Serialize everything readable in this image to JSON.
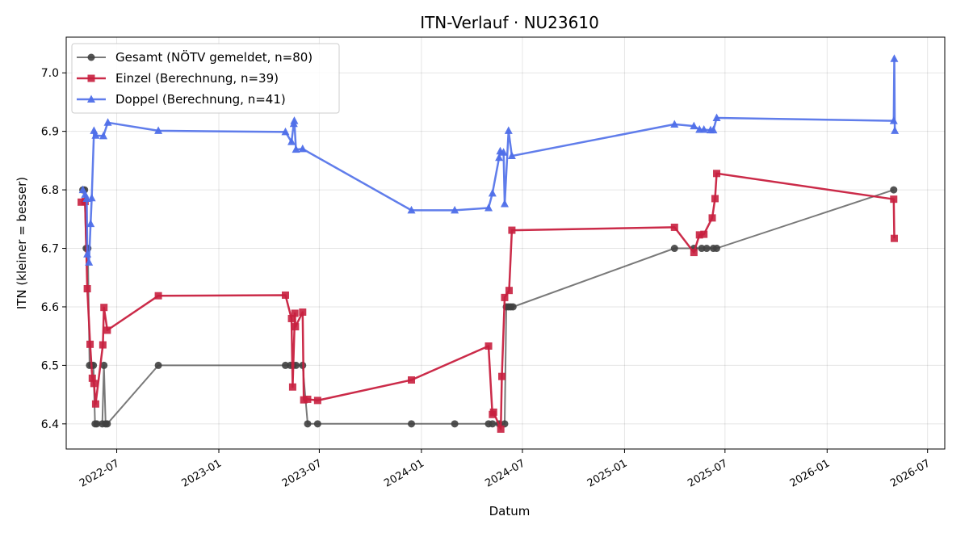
{
  "chart_data": {
    "type": "line",
    "title": "ITN-Verlauf · NU23610",
    "xlabel": "Datum",
    "ylabel": "ITN  (kleiner = besser)",
    "xlim": [
      "2022-04-01",
      "2026-08-01"
    ],
    "ylim": [
      6.357,
      7.061
    ],
    "x_ticks": [
      "2022-07-01",
      "2023-01-01",
      "2023-07-01",
      "2024-01-01",
      "2024-07-01",
      "2025-01-01",
      "2025-07-01",
      "2026-01-01",
      "2026-07-01"
    ],
    "x_tick_labels": [
      "2022-07",
      "2023-01",
      "2023-07",
      "2024-01",
      "2024-07",
      "2025-01",
      "2025-07",
      "2026-01",
      "2026-07"
    ],
    "y_ticks": [
      6.4,
      6.5,
      6.6,
      6.7,
      6.8,
      6.9,
      7.0
    ],
    "y_tick_labels": [
      "6.4",
      "6.5",
      "6.6",
      "6.7",
      "6.8",
      "6.9",
      "7.0"
    ],
    "grid": true,
    "legend_position": "top-left",
    "series": [
      {
        "name": "Gesamt (NÖTV gemeldet, n=80)",
        "color": "#404040",
        "marker": "circle",
        "points": [
          {
            "x": "2022-05-01",
            "y": 6.8
          },
          {
            "x": "2022-05-04",
            "y": 6.8
          },
          {
            "x": "2022-05-07",
            "y": 6.7
          },
          {
            "x": "2022-05-10",
            "y": 6.7
          },
          {
            "x": "2022-05-13",
            "y": 6.5
          },
          {
            "x": "2022-05-17",
            "y": 6.5
          },
          {
            "x": "2022-05-20",
            "y": 6.5
          },
          {
            "x": "2022-05-23",
            "y": 6.4
          },
          {
            "x": "2022-05-26",
            "y": 6.4
          },
          {
            "x": "2022-06-05",
            "y": 6.4
          },
          {
            "x": "2022-06-08",
            "y": 6.5
          },
          {
            "x": "2022-06-11",
            "y": 6.4
          },
          {
            "x": "2022-06-14",
            "y": 6.4
          },
          {
            "x": "2022-09-14",
            "y": 6.5
          },
          {
            "x": "2023-05-01",
            "y": 6.5
          },
          {
            "x": "2023-05-10",
            "y": 6.5
          },
          {
            "x": "2023-05-15",
            "y": 6.5
          },
          {
            "x": "2023-05-20",
            "y": 6.5
          },
          {
            "x": "2023-06-01",
            "y": 6.5
          },
          {
            "x": "2023-06-10",
            "y": 6.4
          },
          {
            "x": "2023-06-28",
            "y": 6.4
          },
          {
            "x": "2023-12-14",
            "y": 6.4
          },
          {
            "x": "2024-03-01",
            "y": 6.4
          },
          {
            "x": "2024-05-01",
            "y": 6.4
          },
          {
            "x": "2024-05-08",
            "y": 6.4
          },
          {
            "x": "2024-05-20",
            "y": 6.4
          },
          {
            "x": "2024-05-30",
            "y": 6.4
          },
          {
            "x": "2024-06-02",
            "y": 6.6
          },
          {
            "x": "2024-06-06",
            "y": 6.6
          },
          {
            "x": "2024-06-10",
            "y": 6.6
          },
          {
            "x": "2024-06-14",
            "y": 6.6
          },
          {
            "x": "2025-04-01",
            "y": 6.7
          },
          {
            "x": "2025-05-06",
            "y": 6.7
          },
          {
            "x": "2025-05-20",
            "y": 6.7
          },
          {
            "x": "2025-05-29",
            "y": 6.7
          },
          {
            "x": "2025-06-10",
            "y": 6.7
          },
          {
            "x": "2025-06-16",
            "y": 6.7
          },
          {
            "x": "2026-05-01",
            "y": 6.8
          }
        ]
      },
      {
        "name": "Einzel (Berechnung, n=39)",
        "color": "#c8203f",
        "marker": "square",
        "points": [
          {
            "x": "2022-04-28",
            "y": 6.779
          },
          {
            "x": "2022-05-05",
            "y": 6.78
          },
          {
            "x": "2022-05-09",
            "y": 6.631
          },
          {
            "x": "2022-05-14",
            "y": 6.536
          },
          {
            "x": "2022-05-18",
            "y": 6.478
          },
          {
            "x": "2022-05-21",
            "y": 6.469
          },
          {
            "x": "2022-05-24",
            "y": 6.434
          },
          {
            "x": "2022-06-06",
            "y": 6.535
          },
          {
            "x": "2022-06-08",
            "y": 6.599
          },
          {
            "x": "2022-06-14",
            "y": 6.56
          },
          {
            "x": "2022-09-14",
            "y": 6.619
          },
          {
            "x": "2023-05-01",
            "y": 6.62
          },
          {
            "x": "2023-05-12",
            "y": 6.58
          },
          {
            "x": "2023-05-14",
            "y": 6.463
          },
          {
            "x": "2023-05-18",
            "y": 6.589
          },
          {
            "x": "2023-05-19",
            "y": 6.566
          },
          {
            "x": "2023-06-01",
            "y": 6.591
          },
          {
            "x": "2023-06-03",
            "y": 6.441
          },
          {
            "x": "2023-06-10",
            "y": 6.442
          },
          {
            "x": "2023-06-28",
            "y": 6.44
          },
          {
            "x": "2023-12-14",
            "y": 6.475
          },
          {
            "x": "2024-05-01",
            "y": 6.533
          },
          {
            "x": "2024-05-08",
            "y": 6.416
          },
          {
            "x": "2024-05-10",
            "y": 6.42
          },
          {
            "x": "2024-05-23",
            "y": 6.391
          },
          {
            "x": "2024-05-25",
            "y": 6.481
          },
          {
            "x": "2024-05-30",
            "y": 6.616
          },
          {
            "x": "2024-06-07",
            "y": 6.628
          },
          {
            "x": "2024-06-12",
            "y": 6.731
          },
          {
            "x": "2025-04-01",
            "y": 6.736
          },
          {
            "x": "2025-05-06",
            "y": 6.693
          },
          {
            "x": "2025-05-16",
            "y": 6.723
          },
          {
            "x": "2025-05-24",
            "y": 6.724
          },
          {
            "x": "2025-06-08",
            "y": 6.752
          },
          {
            "x": "2025-06-13",
            "y": 6.785
          },
          {
            "x": "2025-06-16",
            "y": 6.828
          },
          {
            "x": "2026-05-01",
            "y": 6.784
          },
          {
            "x": "2026-05-02",
            "y": 6.717
          }
        ]
      },
      {
        "name": "Doppel (Berechnung, n=41)",
        "color": "#4f6fe9",
        "marker": "triangle",
        "points": [
          {
            "x": "2022-05-01",
            "y": 6.8
          },
          {
            "x": "2022-05-05",
            "y": 6.792
          },
          {
            "x": "2022-05-08",
            "y": 6.785
          },
          {
            "x": "2022-05-09",
            "y": 6.69
          },
          {
            "x": "2022-05-12",
            "y": 6.676
          },
          {
            "x": "2022-05-15",
            "y": 6.742
          },
          {
            "x": "2022-05-17",
            "y": 6.786
          },
          {
            "x": "2022-05-21",
            "y": 6.901
          },
          {
            "x": "2022-05-24",
            "y": 6.893
          },
          {
            "x": "2022-06-07",
            "y": 6.892
          },
          {
            "x": "2022-06-15",
            "y": 6.915
          },
          {
            "x": "2022-09-14",
            "y": 6.901
          },
          {
            "x": "2023-05-01",
            "y": 6.899
          },
          {
            "x": "2023-05-12",
            "y": 6.882
          },
          {
            "x": "2023-05-16",
            "y": 6.913
          },
          {
            "x": "2023-05-17",
            "y": 6.918
          },
          {
            "x": "2023-05-20",
            "y": 6.869
          },
          {
            "x": "2023-06-01",
            "y": 6.87
          },
          {
            "x": "2023-12-14",
            "y": 6.765
          },
          {
            "x": "2024-03-01",
            "y": 6.765
          },
          {
            "x": "2024-05-01",
            "y": 6.769
          },
          {
            "x": "2024-05-08",
            "y": 6.794
          },
          {
            "x": "2024-05-20",
            "y": 6.855
          },
          {
            "x": "2024-05-22",
            "y": 6.866
          },
          {
            "x": "2024-05-28",
            "y": 6.864
          },
          {
            "x": "2024-05-30",
            "y": 6.776
          },
          {
            "x": "2024-06-06",
            "y": 6.901
          },
          {
            "x": "2024-06-12",
            "y": 6.858
          },
          {
            "x": "2025-04-01",
            "y": 6.912
          },
          {
            "x": "2025-05-06",
            "y": 6.909
          },
          {
            "x": "2025-05-16",
            "y": 6.903
          },
          {
            "x": "2025-05-24",
            "y": 6.903
          },
          {
            "x": "2025-06-05",
            "y": 6.902
          },
          {
            "x": "2025-06-10",
            "y": 6.902
          },
          {
            "x": "2025-06-16",
            "y": 6.923
          },
          {
            "x": "2026-05-01",
            "y": 6.918
          },
          {
            "x": "2026-05-02",
            "y": 7.024
          },
          {
            "x": "2026-05-03",
            "y": 6.901
          }
        ]
      }
    ]
  }
}
